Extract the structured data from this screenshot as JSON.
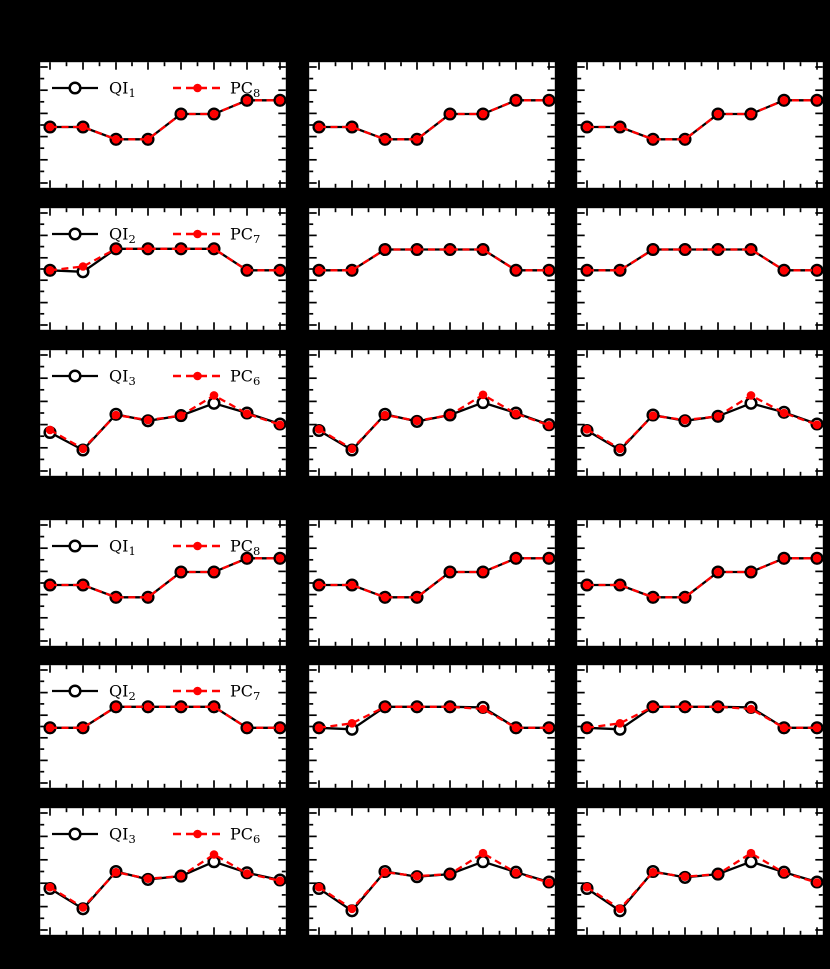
{
  "figure": {
    "background": "#000000",
    "panel_background": "#ffffff",
    "frame_color": "#000000"
  },
  "colors": {
    "qi_series": "#000000",
    "pc_series": "#ff0000",
    "qi_marker_fill": "#ffffff"
  },
  "chart_data": {
    "type": "line",
    "x": [
      1,
      2,
      3,
      4,
      5,
      6,
      7,
      8
    ],
    "ylim": [
      0,
      1
    ],
    "note": "y values estimated as fraction of panel height from bottom; no axis tick labels are visible in the figure",
    "grid": {
      "rows": 6,
      "cols": 3
    },
    "legend_position": "upper left, column 1 panels only, frameless",
    "rows": [
      {
        "legend": {
          "qi": {
            "base": "QI",
            "sub": "1"
          },
          "pc": {
            "base": "PC",
            "sub": "8"
          }
        },
        "cells": [
          {
            "qi": [
              0.485,
              0.485,
              0.39,
              0.39,
              0.585,
              0.585,
              0.69,
              0.69
            ],
            "pc": [
              0.485,
              0.485,
              0.39,
              0.39,
              0.585,
              0.585,
              0.69,
              0.69
            ]
          },
          {
            "qi": [
              0.485,
              0.485,
              0.39,
              0.39,
              0.585,
              0.585,
              0.69,
              0.69
            ],
            "pc": [
              0.485,
              0.485,
              0.39,
              0.39,
              0.585,
              0.585,
              0.69,
              0.69
            ]
          },
          {
            "qi": [
              0.485,
              0.485,
              0.39,
              0.39,
              0.585,
              0.585,
              0.69,
              0.69
            ],
            "pc": [
              0.485,
              0.485,
              0.39,
              0.39,
              0.585,
              0.585,
              0.69,
              0.69
            ]
          }
        ]
      },
      {
        "legend": {
          "qi": {
            "base": "QI",
            "sub": "2"
          },
          "pc": {
            "base": "PC",
            "sub": "7"
          }
        },
        "cells": [
          {
            "qi": [
              0.49,
              0.478,
              0.66,
              0.66,
              0.66,
              0.66,
              0.49,
              0.49
            ],
            "pc": [
              0.49,
              0.52,
              0.66,
              0.66,
              0.66,
              0.66,
              0.49,
              0.49
            ]
          },
          {
            "qi": [
              0.49,
              0.49,
              0.655,
              0.655,
              0.655,
              0.655,
              0.49,
              0.49
            ],
            "pc": [
              0.49,
              0.49,
              0.655,
              0.655,
              0.655,
              0.655,
              0.49,
              0.49
            ]
          },
          {
            "qi": [
              0.49,
              0.49,
              0.655,
              0.655,
              0.655,
              0.655,
              0.49,
              0.49
            ],
            "pc": [
              0.49,
              0.49,
              0.655,
              0.655,
              0.655,
              0.655,
              0.49,
              0.49
            ]
          }
        ]
      },
      {
        "legend": {
          "qi": {
            "base": "QI",
            "sub": "3"
          },
          "pc": {
            "base": "PC",
            "sub": "6"
          }
        },
        "cells": [
          {
            "qi": [
              0.35,
              0.215,
              0.49,
              0.44,
              0.48,
              0.575,
              0.5,
              0.415
            ],
            "pc": [
              0.37,
              0.225,
              0.485,
              0.445,
              0.48,
              0.635,
              0.495,
              0.41
            ]
          },
          {
            "qi": [
              0.365,
              0.215,
              0.49,
              0.435,
              0.485,
              0.58,
              0.5,
              0.41
            ],
            "pc": [
              0.375,
              0.225,
              0.485,
              0.44,
              0.485,
              0.64,
              0.495,
              0.405
            ]
          },
          {
            "qi": [
              0.365,
              0.215,
              0.485,
              0.44,
              0.475,
              0.575,
              0.505,
              0.415
            ],
            "pc": [
              0.375,
              0.225,
              0.48,
              0.445,
              0.475,
              0.635,
              0.5,
              0.41
            ]
          }
        ]
      },
      {
        "legend": {
          "qi": {
            "base": "QI",
            "sub": "1"
          },
          "pc": {
            "base": "PC",
            "sub": "8"
          }
        },
        "cells": [
          {
            "qi": [
              0.485,
              0.485,
              0.39,
              0.39,
              0.585,
              0.585,
              0.69,
              0.69
            ],
            "pc": [
              0.485,
              0.485,
              0.39,
              0.39,
              0.585,
              0.585,
              0.69,
              0.69
            ]
          },
          {
            "qi": [
              0.485,
              0.485,
              0.39,
              0.39,
              0.585,
              0.585,
              0.69,
              0.69
            ],
            "pc": [
              0.485,
              0.485,
              0.39,
              0.39,
              0.585,
              0.585,
              0.69,
              0.69
            ]
          },
          {
            "qi": [
              0.485,
              0.485,
              0.39,
              0.39,
              0.585,
              0.585,
              0.69,
              0.69
            ],
            "pc": [
              0.485,
              0.485,
              0.39,
              0.39,
              0.585,
              0.585,
              0.69,
              0.69
            ]
          }
        ]
      },
      {
        "legend": {
          "qi": {
            "base": "QI",
            "sub": "2"
          },
          "pc": {
            "base": "PC",
            "sub": "7"
          }
        },
        "cells": [
          {
            "qi": [
              0.49,
              0.49,
              0.655,
              0.655,
              0.655,
              0.655,
              0.49,
              0.49
            ],
            "pc": [
              0.49,
              0.49,
              0.655,
              0.655,
              0.655,
              0.655,
              0.49,
              0.49
            ]
          },
          {
            "qi": [
              0.49,
              0.478,
              0.655,
              0.655,
              0.655,
              0.65,
              0.49,
              0.49
            ],
            "pc": [
              0.49,
              0.525,
              0.655,
              0.655,
              0.655,
              0.638,
              0.49,
              0.49
            ]
          },
          {
            "qi": [
              0.49,
              0.478,
              0.655,
              0.655,
              0.655,
              0.65,
              0.49,
              0.49
            ],
            "pc": [
              0.49,
              0.525,
              0.655,
              0.655,
              0.655,
              0.638,
              0.49,
              0.49
            ]
          }
        ]
      },
      {
        "legend": {
          "qi": {
            "base": "QI",
            "sub": "3"
          },
          "pc": {
            "base": "PC",
            "sub": "6"
          }
        },
        "cells": [
          {
            "qi": [
              0.37,
              0.215,
              0.5,
              0.44,
              0.465,
              0.575,
              0.49,
              0.435
            ],
            "pc": [
              0.38,
              0.225,
              0.495,
              0.445,
              0.465,
              0.63,
              0.485,
              0.43
            ]
          },
          {
            "qi": [
              0.37,
              0.2,
              0.5,
              0.46,
              0.48,
              0.575,
              0.495,
              0.42
            ],
            "pc": [
              0.38,
              0.215,
              0.495,
              0.465,
              0.48,
              0.64,
              0.49,
              0.415
            ]
          },
          {
            "qi": [
              0.37,
              0.2,
              0.5,
              0.455,
              0.48,
              0.575,
              0.495,
              0.42
            ],
            "pc": [
              0.38,
              0.215,
              0.495,
              0.46,
              0.48,
              0.64,
              0.49,
              0.415
            ]
          }
        ]
      }
    ]
  }
}
